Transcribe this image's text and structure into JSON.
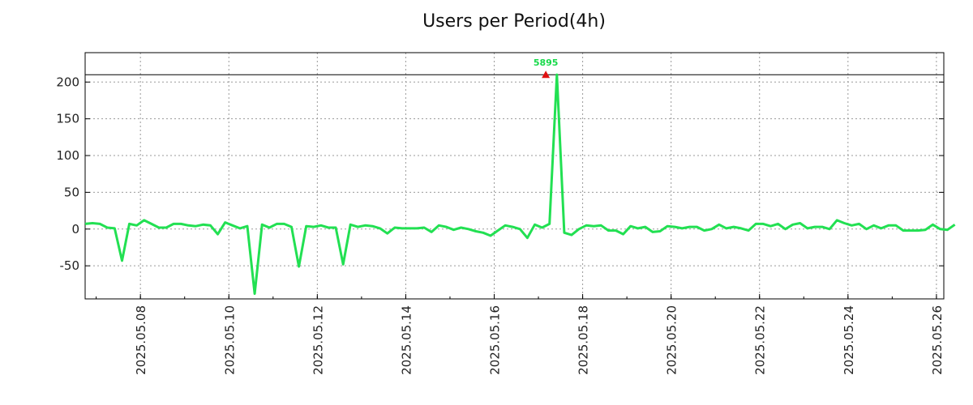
{
  "chart_data": {
    "type": "line",
    "title": "Users per Period(4h)",
    "xlabel": "",
    "ylabel": "",
    "x_range": [
      "2025.05.06 18:00",
      "2025.05.26 04:00"
    ],
    "ylim": [
      -95,
      240
    ],
    "y_ticks": [
      -50,
      0,
      50,
      100,
      150,
      200
    ],
    "x_ticks": [
      "2025.05.08",
      "2025.05.10",
      "2025.05.12",
      "2025.05.14",
      "2025.05.16",
      "2025.05.18",
      "2025.05.20",
      "2025.05.22",
      "2025.05.24",
      "2025.05.26"
    ],
    "grid": true,
    "line_color": "#22e052",
    "reference_line": {
      "y": 210,
      "color": "#000000"
    },
    "annotation": {
      "text": "5895",
      "x": "2025.05.17 04:00",
      "y": 210,
      "marker": "triangle",
      "marker_color": "#e01010",
      "text_color": "#17d94a"
    },
    "series": [
      {
        "x_start": "2025.05.06 18:00",
        "interval_hours": 4,
        "values": [
          7,
          8,
          7,
          2,
          1,
          -43,
          7,
          5,
          12,
          7,
          2,
          2,
          7,
          7,
          5,
          4,
          6,
          5,
          -7,
          9,
          5,
          1,
          4,
          -88,
          6,
          2,
          7,
          7,
          3,
          -51,
          4,
          3,
          5,
          2,
          2,
          -48,
          6,
          3,
          5,
          4,
          1,
          -6,
          2,
          1,
          1,
          1,
          2,
          -4,
          5,
          3,
          -1,
          2,
          0,
          -3,
          -5,
          -9,
          -2,
          5,
          3,
          0,
          -12,
          6,
          2,
          7,
          210,
          -5,
          -8,
          0,
          5,
          4,
          5,
          -2,
          -2,
          -7,
          4,
          1,
          3,
          -4,
          -3,
          4,
          3,
          1,
          3,
          3,
          -2,
          0,
          6,
          1,
          3,
          1,
          -2,
          7,
          7,
          4,
          7,
          0,
          6,
          8,
          1,
          3,
          3,
          0,
          12,
          8,
          5,
          7,
          0,
          5,
          1,
          5,
          5,
          -2,
          -2,
          -2,
          -1,
          6,
          0,
          -1,
          6
        ]
      }
    ]
  }
}
